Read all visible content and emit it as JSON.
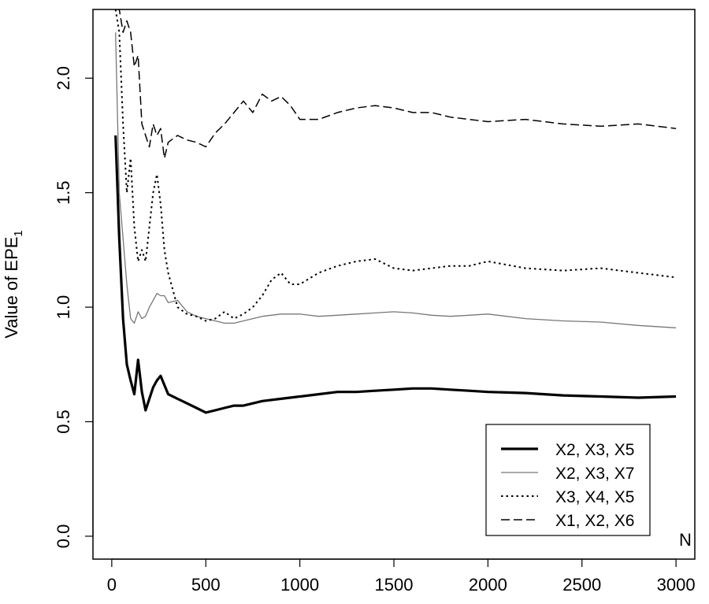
{
  "chart_data": {
    "type": "line",
    "title": "",
    "xlabel": "",
    "ylabel_main": "Value of EPE",
    "ylabel_sub": "1",
    "corner_label": "N",
    "xlim": [
      -100,
      3100
    ],
    "ylim": [
      -0.1,
      2.3
    ],
    "x_ticks": [
      0,
      500,
      1000,
      1500,
      2000,
      2500,
      3000
    ],
    "y_ticks": [
      0.0,
      0.5,
      1.0,
      1.5,
      2.0
    ],
    "y_tick_labels": [
      "0.0",
      "0.5",
      "1.0",
      "1.5",
      "2.0"
    ],
    "grid": false,
    "legend_position": "bottom-right",
    "series": [
      {
        "name": "X2, X3, X5",
        "color": "#000000",
        "style": "solid-thick",
        "x": [
          20,
          40,
          60,
          80,
          100,
          120,
          140,
          160,
          180,
          200,
          220,
          240,
          260,
          280,
          300,
          350,
          400,
          450,
          500,
          550,
          600,
          650,
          700,
          800,
          900,
          1000,
          1100,
          1200,
          1300,
          1400,
          1500,
          1600,
          1700,
          1800,
          1900,
          2000,
          2200,
          2400,
          2600,
          2800,
          3000
        ],
        "y": [
          1.75,
          1.3,
          0.95,
          0.75,
          0.68,
          0.62,
          0.77,
          0.63,
          0.55,
          0.6,
          0.65,
          0.68,
          0.7,
          0.66,
          0.62,
          0.6,
          0.58,
          0.56,
          0.54,
          0.55,
          0.56,
          0.57,
          0.57,
          0.59,
          0.6,
          0.61,
          0.62,
          0.63,
          0.63,
          0.635,
          0.64,
          0.645,
          0.645,
          0.64,
          0.635,
          0.63,
          0.625,
          0.615,
          0.61,
          0.605,
          0.61
        ]
      },
      {
        "name": "X2, X3, X7",
        "color": "#777777",
        "style": "solid-thin",
        "x": [
          20,
          40,
          60,
          80,
          100,
          120,
          140,
          160,
          180,
          200,
          220,
          240,
          260,
          280,
          300,
          350,
          400,
          450,
          500,
          550,
          600,
          650,
          700,
          800,
          900,
          1000,
          1100,
          1200,
          1300,
          1400,
          1500,
          1600,
          1700,
          1800,
          1900,
          2000,
          2200,
          2400,
          2600,
          2800,
          3000
        ],
        "y": [
          2.2,
          1.5,
          1.3,
          1.1,
          0.95,
          0.93,
          0.98,
          0.95,
          0.96,
          1.0,
          1.03,
          1.06,
          1.05,
          1.05,
          1.02,
          1.03,
          0.98,
          0.96,
          0.95,
          0.94,
          0.93,
          0.93,
          0.94,
          0.96,
          0.97,
          0.97,
          0.96,
          0.965,
          0.97,
          0.975,
          0.98,
          0.975,
          0.965,
          0.96,
          0.965,
          0.97,
          0.95,
          0.94,
          0.935,
          0.92,
          0.91
        ]
      },
      {
        "name": "X3, X4, X5",
        "color": "#000000",
        "style": "dotted",
        "x": [
          20,
          40,
          60,
          80,
          100,
          120,
          140,
          160,
          180,
          200,
          220,
          240,
          260,
          280,
          300,
          350,
          400,
          450,
          500,
          550,
          600,
          650,
          700,
          750,
          800,
          850,
          900,
          950,
          1000,
          1100,
          1200,
          1300,
          1400,
          1500,
          1600,
          1700,
          1800,
          1900,
          2000,
          2200,
          2400,
          2600,
          2800,
          3000
        ],
        "y": [
          2.3,
          2.2,
          1.8,
          1.5,
          1.65,
          1.35,
          1.2,
          1.25,
          1.2,
          1.35,
          1.5,
          1.58,
          1.45,
          1.25,
          1.15,
          1.0,
          0.97,
          0.96,
          0.94,
          0.95,
          0.98,
          0.95,
          0.97,
          1.0,
          1.05,
          1.12,
          1.15,
          1.1,
          1.1,
          1.15,
          1.18,
          1.2,
          1.21,
          1.17,
          1.16,
          1.17,
          1.18,
          1.18,
          1.2,
          1.17,
          1.16,
          1.17,
          1.15,
          1.13
        ]
      },
      {
        "name": "X1, X2, X6",
        "color": "#000000",
        "style": "dashed",
        "x": [
          20,
          40,
          60,
          80,
          100,
          120,
          140,
          160,
          180,
          200,
          220,
          240,
          260,
          280,
          300,
          350,
          400,
          450,
          500,
          550,
          600,
          650,
          700,
          750,
          800,
          850,
          900,
          950,
          1000,
          1100,
          1200,
          1300,
          1400,
          1500,
          1600,
          1700,
          1800,
          1900,
          2000,
          2200,
          2400,
          2600,
          2800,
          3000
        ],
        "y": [
          2.3,
          2.3,
          2.2,
          2.25,
          2.2,
          2.05,
          2.1,
          1.8,
          1.75,
          1.7,
          1.8,
          1.75,
          1.78,
          1.65,
          1.72,
          1.75,
          1.73,
          1.72,
          1.7,
          1.76,
          1.8,
          1.85,
          1.9,
          1.85,
          1.93,
          1.9,
          1.92,
          1.88,
          1.82,
          1.82,
          1.85,
          1.87,
          1.88,
          1.87,
          1.85,
          1.85,
          1.83,
          1.82,
          1.81,
          1.82,
          1.8,
          1.79,
          1.8,
          1.78
        ]
      }
    ]
  }
}
